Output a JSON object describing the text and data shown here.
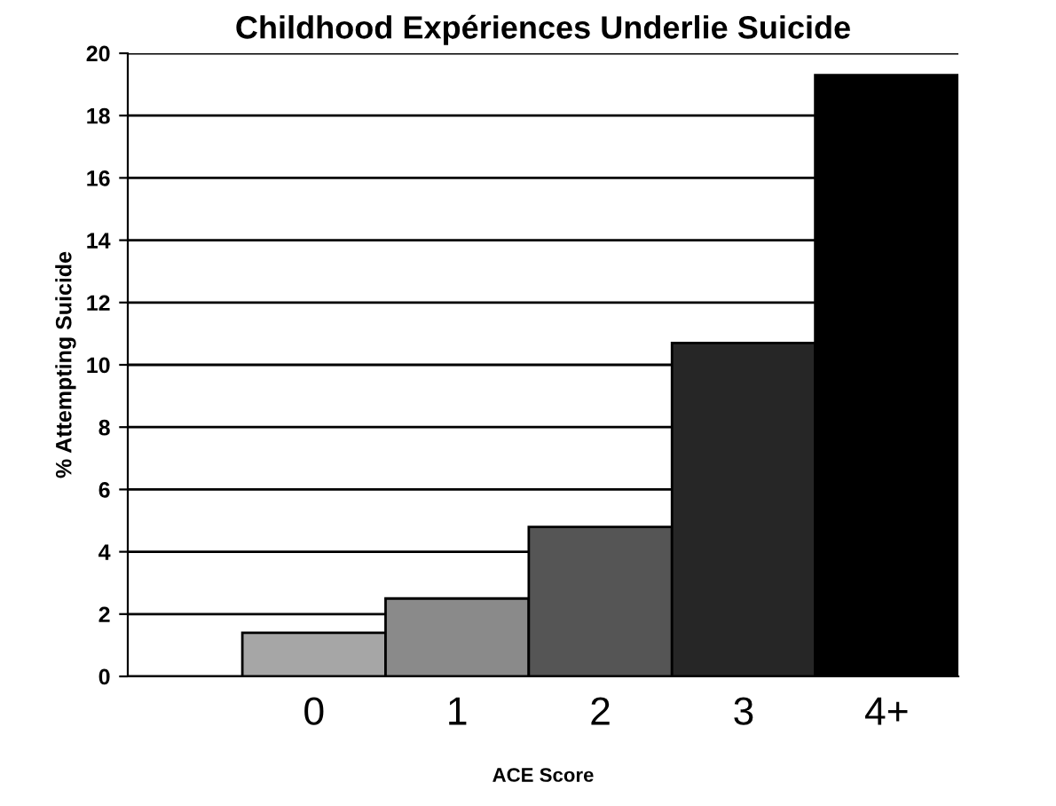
{
  "chart_data": {
    "type": "bar",
    "title": "Childhood Expériences Underlie Suicide",
    "xlabel": "ACE Score",
    "ylabel": "% Attempting Suicide",
    "categories": [
      "0",
      "1",
      "2",
      "3",
      "4+"
    ],
    "values": [
      1.4,
      2.5,
      4.8,
      10.7,
      19.3
    ],
    "colors": [
      "#a6a6a6",
      "#8a8a8a",
      "#555555",
      "#262626",
      "#000000"
    ],
    "ylim": [
      0,
      20
    ],
    "yticks": [
      0,
      2,
      4,
      6,
      8,
      10,
      12,
      14,
      16,
      18,
      20
    ],
    "grid": "y"
  }
}
